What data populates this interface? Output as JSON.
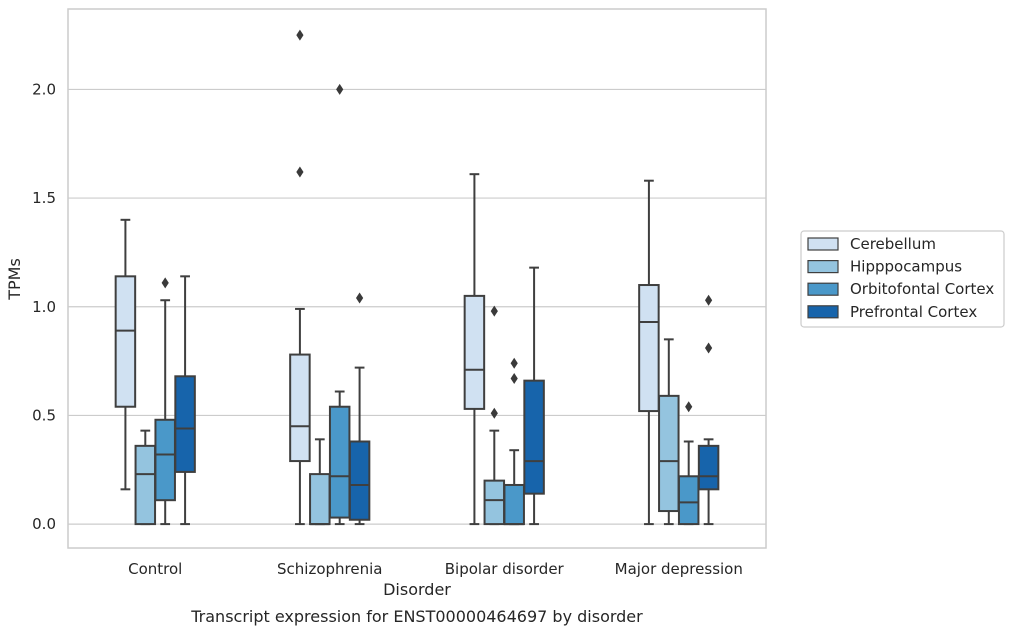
{
  "chart_data": {
    "type": "boxplot",
    "caption": "Transcript expression for ENST00000464697 by disorder",
    "xlabel": "Disorder",
    "ylabel": "TPMs",
    "ylim": [
      -0.11,
      2.37
    ],
    "yticks": [
      "0.0",
      "0.5",
      "1.0",
      "1.5",
      "2.0"
    ],
    "ytick_values": [
      0,
      0.5,
      1.0,
      1.5,
      2.0
    ],
    "grid": "horizontal",
    "legend_position": "right, outside plot",
    "categories": [
      "Control",
      "Schizophrenia",
      "Bipolar disorder",
      "Major depression"
    ],
    "series": [
      {
        "name": "Cerebellum",
        "color": "#d0e1f2",
        "boxes": [
          {
            "whislo": 0.16,
            "q1": 0.54,
            "med": 0.89,
            "q3": 1.14,
            "whishi": 1.4,
            "fliers": []
          },
          {
            "whislo": 0.0,
            "q1": 0.29,
            "med": 0.45,
            "q3": 0.78,
            "whishi": 0.99,
            "fliers": [
              1.62,
              2.25
            ]
          },
          {
            "whislo": 0.0,
            "q1": 0.53,
            "med": 0.71,
            "q3": 1.05,
            "whishi": 1.61,
            "fliers": []
          },
          {
            "whislo": 0.0,
            "q1": 0.52,
            "med": 0.93,
            "q3": 1.1,
            "whishi": 1.58,
            "fliers": []
          }
        ]
      },
      {
        "name": "Hipppocampus",
        "color": "#94c4df",
        "boxes": [
          {
            "whislo": 0.0,
            "q1": 0.0,
            "med": 0.23,
            "q3": 0.36,
            "whishi": 0.43,
            "fliers": []
          },
          {
            "whislo": 0.0,
            "q1": 0.0,
            "med": 0.0,
            "q3": 0.23,
            "whishi": 0.39,
            "fliers": []
          },
          {
            "whislo": 0.0,
            "q1": 0.0,
            "med": 0.11,
            "q3": 0.2,
            "whishi": 0.43,
            "fliers": [
              0.51,
              0.98
            ]
          },
          {
            "whislo": 0.0,
            "q1": 0.06,
            "med": 0.29,
            "q3": 0.59,
            "whishi": 0.85,
            "fliers": []
          }
        ]
      },
      {
        "name": "Orbitofontal Cortex",
        "color": "#4a98c9",
        "boxes": [
          {
            "whislo": 0.0,
            "q1": 0.11,
            "med": 0.32,
            "q3": 0.48,
            "whishi": 1.03,
            "fliers": [
              1.11
            ]
          },
          {
            "whislo": 0.0,
            "q1": 0.03,
            "med": 0.22,
            "q3": 0.54,
            "whishi": 0.61,
            "fliers": [
              2.0
            ]
          },
          {
            "whislo": 0.0,
            "q1": 0.0,
            "med": 0.0,
            "q3": 0.18,
            "whishi": 0.34,
            "fliers": [
              0.67,
              0.74
            ]
          },
          {
            "whislo": 0.0,
            "q1": 0.0,
            "med": 0.1,
            "q3": 0.22,
            "whishi": 0.38,
            "fliers": [
              0.54
            ]
          }
        ]
      },
      {
        "name": "Prefrontal Cortex",
        "color": "#1764ab",
        "boxes": [
          {
            "whislo": 0.0,
            "q1": 0.24,
            "med": 0.44,
            "q3": 0.68,
            "whishi": 1.14,
            "fliers": []
          },
          {
            "whislo": 0.0,
            "q1": 0.02,
            "med": 0.18,
            "q3": 0.38,
            "whishi": 0.72,
            "fliers": [
              1.04
            ]
          },
          {
            "whislo": 0.0,
            "q1": 0.14,
            "med": 0.29,
            "q3": 0.66,
            "whishi": 1.18,
            "fliers": []
          },
          {
            "whislo": 0.0,
            "q1": 0.16,
            "med": 0.22,
            "q3": 0.36,
            "whishi": 0.39,
            "fliers": [
              0.81,
              1.03
            ]
          }
        ]
      }
    ]
  }
}
